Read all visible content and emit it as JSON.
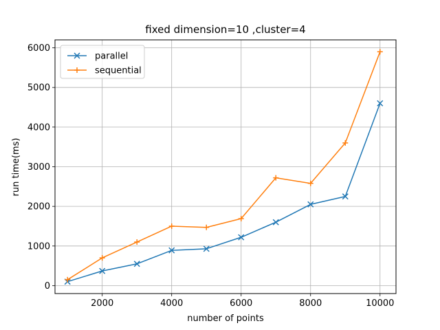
{
  "chart_data": {
    "type": "line",
    "title": "fixed dimension=10 ,cluster=4",
    "xlabel": "number of points",
    "ylabel": "run time(ms)",
    "x": [
      1000,
      2000,
      3000,
      4000,
      5000,
      6000,
      7000,
      8000,
      9000,
      10000
    ],
    "xlim": [
      640,
      10460
    ],
    "ylim": [
      -200,
      6200
    ],
    "xticks": [
      2000,
      4000,
      6000,
      8000,
      10000
    ],
    "yticks": [
      0,
      1000,
      2000,
      3000,
      4000,
      5000,
      6000
    ],
    "grid": true,
    "legend_position": "upper left",
    "series": [
      {
        "name": "parallel",
        "color": "#1f77b4",
        "marker": "x",
        "values": [
          100,
          370,
          550,
          890,
          930,
          1220,
          1600,
          2050,
          2250,
          4600
        ]
      },
      {
        "name": "sequential",
        "color": "#ff7f0e",
        "marker": "plus",
        "values": [
          150,
          700,
          1100,
          1500,
          1470,
          1690,
          2720,
          2580,
          3600,
          5900
        ]
      }
    ]
  }
}
